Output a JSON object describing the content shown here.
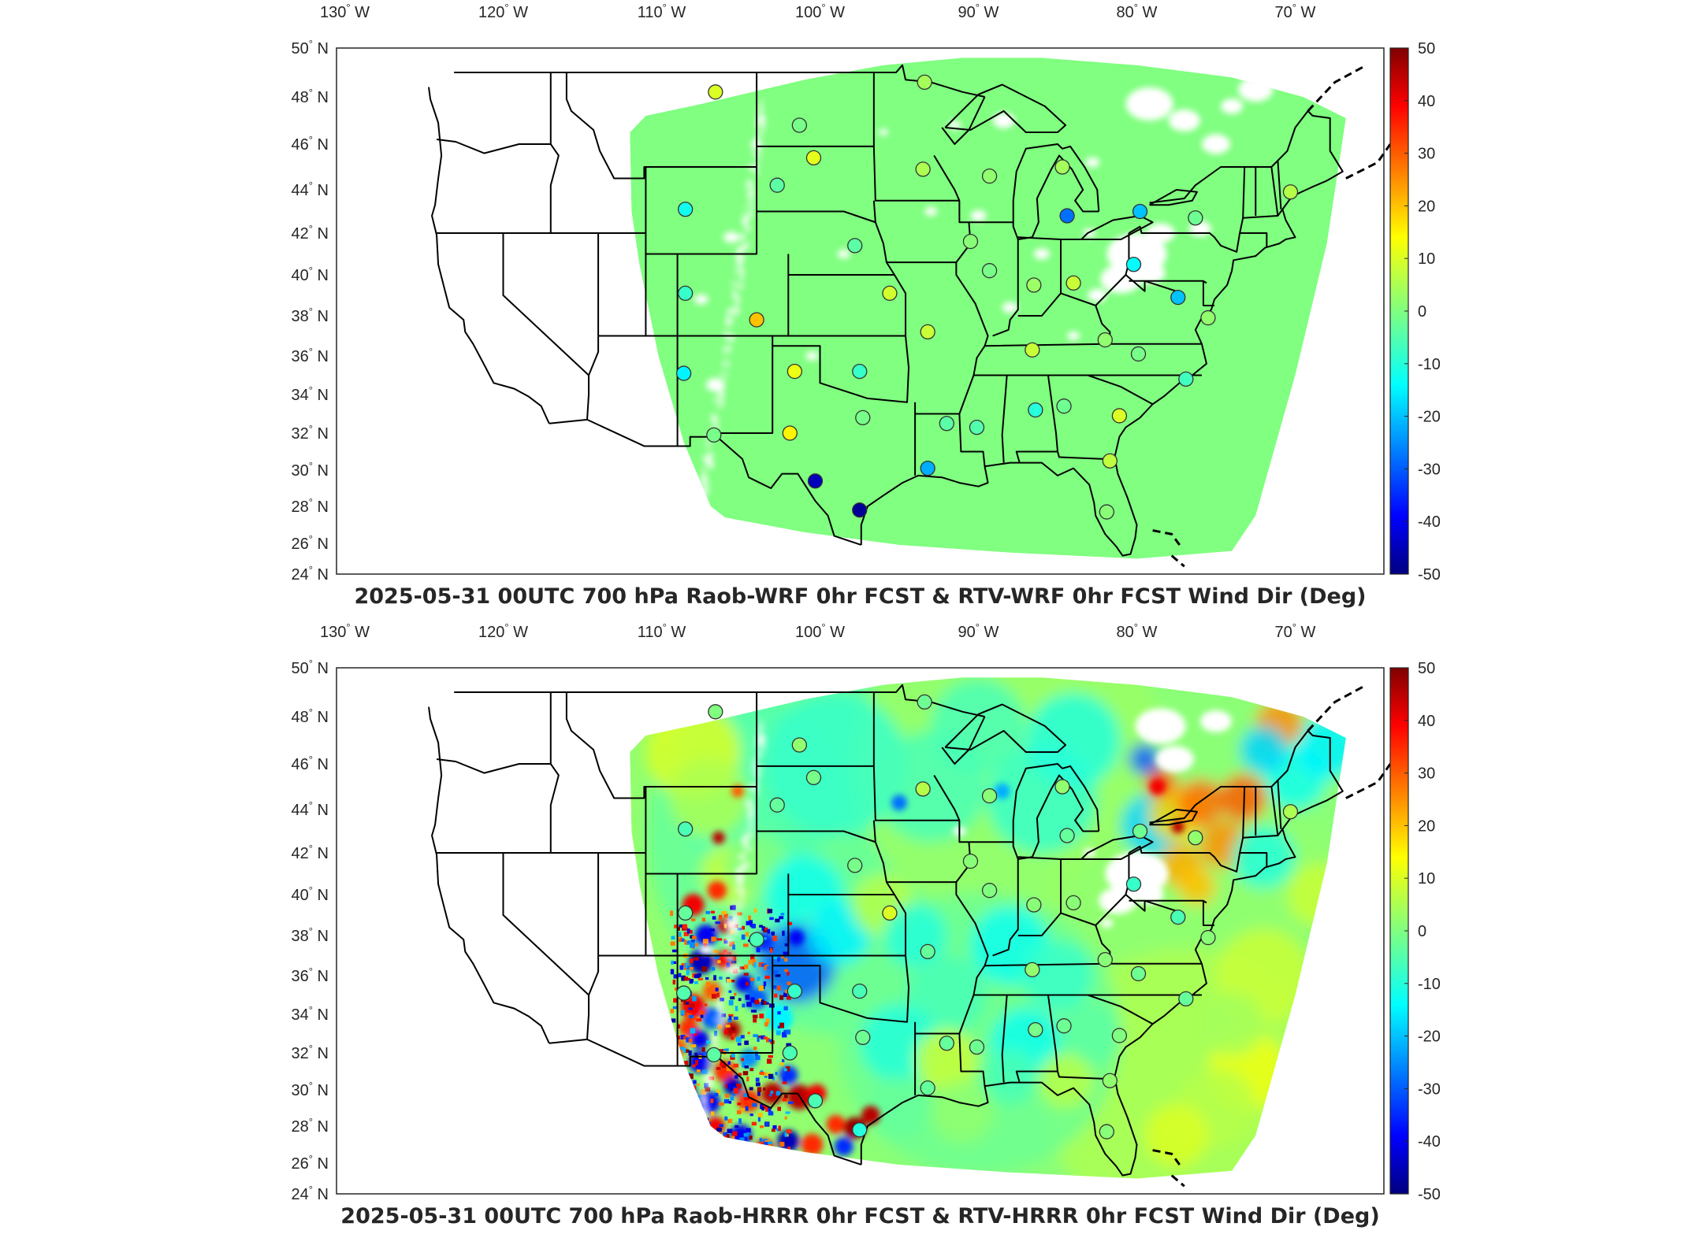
{
  "panels": [
    {
      "id": "wrf",
      "title": "2025-05-31 00UTC 700 hPa Raob-WRF 0hr FCST & RTV-WRF 0hr FCST Wind Dir (Deg)",
      "lon_labels": [
        "130° W",
        "120° W",
        "110° W",
        "100° W",
        "90° W",
        "80° W",
        "70° W"
      ],
      "lat_labels": [
        "50° N",
        "48° N",
        "46° N",
        "44° N",
        "42° N",
        "40° N",
        "38° N",
        "36° N",
        "34° N",
        "32° N",
        "30° N",
        "28° N",
        "26° N",
        "24° N"
      ],
      "colorbar_ticks": [
        "50",
        "40",
        "30",
        "20",
        "10",
        "0",
        "-10",
        "-20",
        "-30",
        "-40",
        "-50"
      ],
      "field": "uniform",
      "stations": [
        {
          "lon": -106.6,
          "lat": 48.2,
          "v": 10
        },
        {
          "lon": -101.3,
          "lat": 46.8,
          "v": -1
        },
        {
          "lon": -100.4,
          "lat": 45.4,
          "v": 11
        },
        {
          "lon": -93.4,
          "lat": 48.6,
          "v": 4
        },
        {
          "lon": -93.5,
          "lat": 44.9,
          "v": 5
        },
        {
          "lon": -108.5,
          "lat": 43.1,
          "v": -12
        },
        {
          "lon": -102.7,
          "lat": 44.2,
          "v": -4
        },
        {
          "lon": -89.3,
          "lat": 44.6,
          "v": 2
        },
        {
          "lon": -84.7,
          "lat": 45.0,
          "v": 4
        },
        {
          "lon": -84.4,
          "lat": 42.8,
          "v": -28
        },
        {
          "lon": -79.8,
          "lat": 43.0,
          "v": -20
        },
        {
          "lon": -76.3,
          "lat": 42.7,
          "v": -2
        },
        {
          "lon": -70.3,
          "lat": 43.9,
          "v": 6
        },
        {
          "lon": -108.5,
          "lat": 39.1,
          "v": -8
        },
        {
          "lon": -104.0,
          "lat": 37.8,
          "v": 20
        },
        {
          "lon": -97.8,
          "lat": 41.4,
          "v": -4
        },
        {
          "lon": -95.6,
          "lat": 39.1,
          "v": 9
        },
        {
          "lon": -90.5,
          "lat": 41.6,
          "v": 1
        },
        {
          "lon": -89.3,
          "lat": 40.2,
          "v": -1
        },
        {
          "lon": -86.5,
          "lat": 39.5,
          "v": 3
        },
        {
          "lon": -84.0,
          "lat": 39.6,
          "v": 8
        },
        {
          "lon": -80.2,
          "lat": 40.5,
          "v": -14
        },
        {
          "lon": -77.4,
          "lat": 38.9,
          "v": -20
        },
        {
          "lon": -75.5,
          "lat": 37.9,
          "v": 2
        },
        {
          "lon": -108.6,
          "lat": 35.1,
          "v": -15
        },
        {
          "lon": -101.6,
          "lat": 35.2,
          "v": 12
        },
        {
          "lon": -97.5,
          "lat": 35.2,
          "v": -8
        },
        {
          "lon": -93.2,
          "lat": 37.2,
          "v": 8
        },
        {
          "lon": -86.6,
          "lat": 36.3,
          "v": 8
        },
        {
          "lon": -82.0,
          "lat": 36.8,
          "v": 2
        },
        {
          "lon": -79.9,
          "lat": 36.1,
          "v": -1
        },
        {
          "lon": -76.9,
          "lat": 34.8,
          "v": -7
        },
        {
          "lon": -106.7,
          "lat": 31.9,
          "v": -1
        },
        {
          "lon": -101.9,
          "lat": 32.0,
          "v": 15
        },
        {
          "lon": -97.3,
          "lat": 32.8,
          "v": -1
        },
        {
          "lon": -92.0,
          "lat": 32.5,
          "v": -4
        },
        {
          "lon": -90.1,
          "lat": 32.3,
          "v": -5
        },
        {
          "lon": -86.4,
          "lat": 33.2,
          "v": -10
        },
        {
          "lon": -84.6,
          "lat": 33.4,
          "v": -2
        },
        {
          "lon": -81.1,
          "lat": 32.9,
          "v": 10
        },
        {
          "lon": -81.7,
          "lat": 30.5,
          "v": 7
        },
        {
          "lon": -93.2,
          "lat": 30.1,
          "v": -22
        },
        {
          "lon": -100.3,
          "lat": 29.4,
          "v": -45
        },
        {
          "lon": -97.5,
          "lat": 27.8,
          "v": -48
        },
        {
          "lon": -81.9,
          "lat": 27.7,
          "v": 1
        }
      ]
    },
    {
      "id": "hrrr",
      "title": "2025-05-31 00UTC 700 hPa Raob-HRRR 0hr FCST & RTV-HRRR 0hr FCST Wind Dir (Deg)",
      "lon_labels": [
        "130° W",
        "120° W",
        "110° W",
        "100° W",
        "90° W",
        "80° W",
        "70° W"
      ],
      "lat_labels": [
        "50° N",
        "48° N",
        "46° N",
        "44° N",
        "42° N",
        "40° N",
        "38° N",
        "36° N",
        "34° N",
        "32° N",
        "30° N",
        "28° N",
        "26° N",
        "24° N"
      ],
      "colorbar_ticks": [
        "50",
        "40",
        "30",
        "20",
        "10",
        "0",
        "-10",
        "-20",
        "-30",
        "-40",
        "-50"
      ],
      "field": "variable",
      "stations": [
        {
          "lon": -106.6,
          "lat": 48.2,
          "v": 0
        },
        {
          "lon": -101.3,
          "lat": 46.8,
          "v": 2
        },
        {
          "lon": -100.4,
          "lat": 45.4,
          "v": -1
        },
        {
          "lon": -93.4,
          "lat": 48.6,
          "v": -2
        },
        {
          "lon": -93.5,
          "lat": 44.9,
          "v": 6
        },
        {
          "lon": -108.5,
          "lat": 43.1,
          "v": -6
        },
        {
          "lon": -102.7,
          "lat": 44.2,
          "v": -3
        },
        {
          "lon": -89.3,
          "lat": 44.6,
          "v": 1
        },
        {
          "lon": -84.7,
          "lat": 45.0,
          "v": 2
        },
        {
          "lon": -84.4,
          "lat": 42.8,
          "v": -3
        },
        {
          "lon": -79.8,
          "lat": 43.0,
          "v": -2
        },
        {
          "lon": -76.3,
          "lat": 42.7,
          "v": 2
        },
        {
          "lon": -70.3,
          "lat": 43.9,
          "v": 5
        },
        {
          "lon": -108.5,
          "lat": 39.1,
          "v": -3
        },
        {
          "lon": -104.0,
          "lat": 37.8,
          "v": -6
        },
        {
          "lon": -97.8,
          "lat": 41.4,
          "v": -1
        },
        {
          "lon": -95.6,
          "lat": 39.1,
          "v": 10
        },
        {
          "lon": -90.5,
          "lat": 41.6,
          "v": 1
        },
        {
          "lon": -89.3,
          "lat": 40.2,
          "v": 0
        },
        {
          "lon": -86.5,
          "lat": 39.5,
          "v": 1
        },
        {
          "lon": -84.0,
          "lat": 39.6,
          "v": 1
        },
        {
          "lon": -80.2,
          "lat": 40.5,
          "v": -8
        },
        {
          "lon": -77.4,
          "lat": 38.9,
          "v": -6
        },
        {
          "lon": -75.5,
          "lat": 37.9,
          "v": 1
        },
        {
          "lon": -108.6,
          "lat": 35.1,
          "v": -5
        },
        {
          "lon": -101.6,
          "lat": 35.2,
          "v": -8
        },
        {
          "lon": -97.5,
          "lat": 35.2,
          "v": -6
        },
        {
          "lon": -93.2,
          "lat": 37.2,
          "v": -3
        },
        {
          "lon": -86.6,
          "lat": 36.3,
          "v": 2
        },
        {
          "lon": -82.0,
          "lat": 36.8,
          "v": 1
        },
        {
          "lon": -79.9,
          "lat": 36.1,
          "v": -2
        },
        {
          "lon": -76.9,
          "lat": 34.8,
          "v": -3
        },
        {
          "lon": -106.7,
          "lat": 31.9,
          "v": -4
        },
        {
          "lon": -101.9,
          "lat": 32.0,
          "v": -6
        },
        {
          "lon": -97.3,
          "lat": 32.8,
          "v": -2
        },
        {
          "lon": -92.0,
          "lat": 32.5,
          "v": -3
        },
        {
          "lon": -90.1,
          "lat": 32.3,
          "v": -2
        },
        {
          "lon": -86.4,
          "lat": 33.2,
          "v": -1
        },
        {
          "lon": -84.6,
          "lat": 33.4,
          "v": -2
        },
        {
          "lon": -81.1,
          "lat": 32.9,
          "v": 0
        },
        {
          "lon": -81.7,
          "lat": 30.5,
          "v": 2
        },
        {
          "lon": -93.2,
          "lat": 30.1,
          "v": -3
        },
        {
          "lon": -100.3,
          "lat": 29.4,
          "v": -6
        },
        {
          "lon": -97.5,
          "lat": 27.8,
          "v": -10
        },
        {
          "lon": -81.9,
          "lat": 27.7,
          "v": 1
        }
      ]
    }
  ],
  "colors": {
    "uniform_field": "#80ff80",
    "frame": "#262626",
    "boundary": "#000000"
  }
}
